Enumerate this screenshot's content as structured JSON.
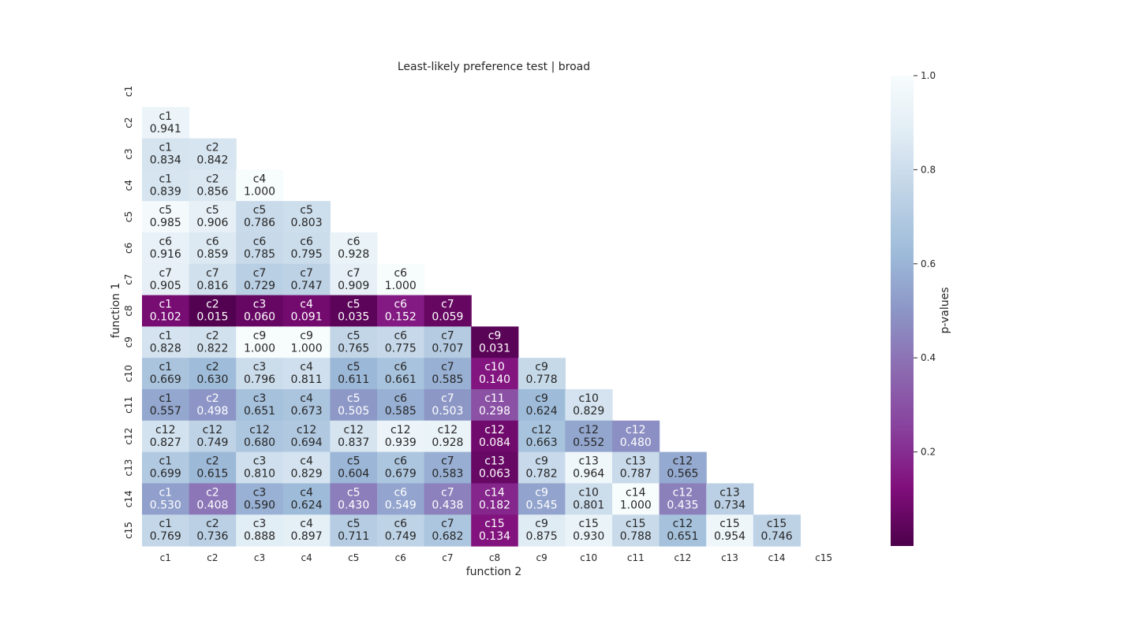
{
  "chart_data": {
    "type": "heatmap",
    "title": "Least-likely preference test | broad",
    "xlabel": "function 2",
    "ylabel": "function 1",
    "colorbar_label": "p-values",
    "colorbar_range": [
      0.0,
      1.0
    ],
    "colorbar_ticks": [
      "0.2",
      "0.4",
      "0.6",
      "0.8",
      "1.0"
    ],
    "colormap": "BuPu_r",
    "x_categories": [
      "c1",
      "c2",
      "c3",
      "c4",
      "c5",
      "c6",
      "c7",
      "c8",
      "c9",
      "c10",
      "c11",
      "c12",
      "c13",
      "c14",
      "c15"
    ],
    "y_categories": [
      "c1",
      "c2",
      "c3",
      "c4",
      "c5",
      "c6",
      "c7",
      "c8",
      "c9",
      "c10",
      "c11",
      "c12",
      "c13",
      "c14",
      "c15"
    ],
    "cells": [
      {
        "row": "c2",
        "values": [
          0.941
        ],
        "labels": [
          "c1"
        ],
        "display": [
          "0.941"
        ]
      },
      {
        "row": "c3",
        "values": [
          0.834,
          0.842
        ],
        "labels": [
          "c1",
          "c2"
        ],
        "display": [
          "0.834",
          "0.842"
        ]
      },
      {
        "row": "c4",
        "values": [
          0.839,
          0.856,
          1.0
        ],
        "labels": [
          "c1",
          "c2",
          "c4"
        ],
        "display": [
          "0.839",
          "0.856",
          "1.000"
        ]
      },
      {
        "row": "c5",
        "values": [
          0.985,
          0.906,
          0.786,
          0.803
        ],
        "labels": [
          "c5",
          "c5",
          "c5",
          "c5"
        ],
        "display": [
          "0.985",
          "0.906",
          "0.786",
          "0.803"
        ]
      },
      {
        "row": "c6",
        "values": [
          0.916,
          0.859,
          0.785,
          0.795,
          0.928
        ],
        "labels": [
          "c6",
          "c6",
          "c6",
          "c6",
          "c6"
        ],
        "display": [
          "0.916",
          "0.859",
          "0.785",
          "0.795",
          "0.928"
        ]
      },
      {
        "row": "c7",
        "values": [
          0.905,
          0.816,
          0.729,
          0.747,
          0.909,
          1.0
        ],
        "labels": [
          "c7",
          "c7",
          "c7",
          "c7",
          "c7",
          "c6"
        ],
        "display": [
          "0.905",
          "0.816",
          "0.729",
          "0.747",
          "0.909",
          "1.000"
        ]
      },
      {
        "row": "c8",
        "values": [
          0.102,
          0.015,
          0.06,
          0.091,
          0.035,
          0.152,
          0.059
        ],
        "labels": [
          "c1",
          "c2",
          "c3",
          "c4",
          "c5",
          "c6",
          "c7"
        ],
        "display": [
          "0.102",
          "0.015",
          "0.060",
          "0.091",
          "0.035",
          "0.152",
          "0.059"
        ]
      },
      {
        "row": "c9",
        "values": [
          0.828,
          0.822,
          1.0,
          1.0,
          0.765,
          0.775,
          0.707,
          0.031
        ],
        "labels": [
          "c1",
          "c2",
          "c9",
          "c9",
          "c5",
          "c6",
          "c7",
          "c9"
        ],
        "display": [
          "0.828",
          "0.822",
          "1.000",
          "1.000",
          "0.765",
          "0.775",
          "0.707",
          "0.031"
        ]
      },
      {
        "row": "c10",
        "values": [
          0.669,
          0.63,
          0.796,
          0.811,
          0.611,
          0.661,
          0.585,
          0.14,
          0.778
        ],
        "labels": [
          "c1",
          "c2",
          "c3",
          "c4",
          "c5",
          "c6",
          "c7",
          "c10",
          "c9"
        ],
        "display": [
          "0.669",
          "0.630",
          "0.796",
          "0.811",
          "0.611",
          "0.661",
          "0.585",
          "0.140",
          "0.778"
        ]
      },
      {
        "row": "c11",
        "values": [
          0.557,
          0.498,
          0.651,
          0.673,
          0.505,
          0.585,
          0.503,
          0.298,
          0.624,
          0.829
        ],
        "labels": [
          "c1",
          "c2",
          "c3",
          "c4",
          "c5",
          "c6",
          "c7",
          "c11",
          "c9",
          "c10"
        ],
        "display": [
          "0.557",
          "0.498",
          "0.651",
          "0.673",
          "0.505",
          "0.585",
          "0.503",
          "0.298",
          "0.624",
          "0.829"
        ]
      },
      {
        "row": "c12",
        "values": [
          0.827,
          0.749,
          0.68,
          0.694,
          0.837,
          0.939,
          0.928,
          0.084,
          0.663,
          0.552,
          0.48
        ],
        "labels": [
          "c12",
          "c12",
          "c12",
          "c12",
          "c12",
          "c12",
          "c12",
          "c12",
          "c12",
          "c12",
          "c12"
        ],
        "display": [
          "0.827",
          "0.749",
          "0.680",
          "0.694",
          "0.837",
          "0.939",
          "0.928",
          "0.084",
          "0.663",
          "0.552",
          "0.480"
        ]
      },
      {
        "row": "c13",
        "values": [
          0.699,
          0.615,
          0.81,
          0.829,
          0.604,
          0.679,
          0.583,
          0.063,
          0.782,
          0.964,
          0.787,
          0.565
        ],
        "labels": [
          "c1",
          "c2",
          "c3",
          "c4",
          "c5",
          "c6",
          "c7",
          "c13",
          "c9",
          "c13",
          "c13",
          "c12"
        ],
        "display": [
          "0.699",
          "0.615",
          "0.810",
          "0.829",
          "0.604",
          "0.679",
          "0.583",
          "0.063",
          "0.782",
          "0.964",
          "0.787",
          "0.565"
        ]
      },
      {
        "row": "c14",
        "values": [
          0.53,
          0.408,
          0.59,
          0.624,
          0.43,
          0.549,
          0.438,
          0.182,
          0.545,
          0.801,
          1.0,
          0.435,
          0.734
        ],
        "labels": [
          "c1",
          "c2",
          "c3",
          "c4",
          "c5",
          "c6",
          "c7",
          "c14",
          "c9",
          "c10",
          "c14",
          "c12",
          "c13"
        ],
        "display": [
          "0.530",
          "0.408",
          "0.590",
          "0.624",
          "0.430",
          "0.549",
          "0.438",
          "0.182",
          "0.545",
          "0.801",
          "1.000",
          "0.435",
          "0.734"
        ]
      },
      {
        "row": "c15",
        "values": [
          0.769,
          0.736,
          0.888,
          0.897,
          0.711,
          0.749,
          0.682,
          0.134,
          0.875,
          0.93,
          0.788,
          0.651,
          0.954,
          0.746
        ],
        "labels": [
          "c1",
          "c2",
          "c3",
          "c4",
          "c5",
          "c6",
          "c7",
          "c15",
          "c9",
          "c15",
          "c15",
          "c12",
          "c15",
          "c15"
        ],
        "display": [
          "0.769",
          "0.736",
          "0.888",
          "0.897",
          "0.711",
          "0.749",
          "0.682",
          "0.134",
          "0.875",
          "0.930",
          "0.788",
          "0.651",
          "0.954",
          "0.746"
        ]
      }
    ]
  }
}
